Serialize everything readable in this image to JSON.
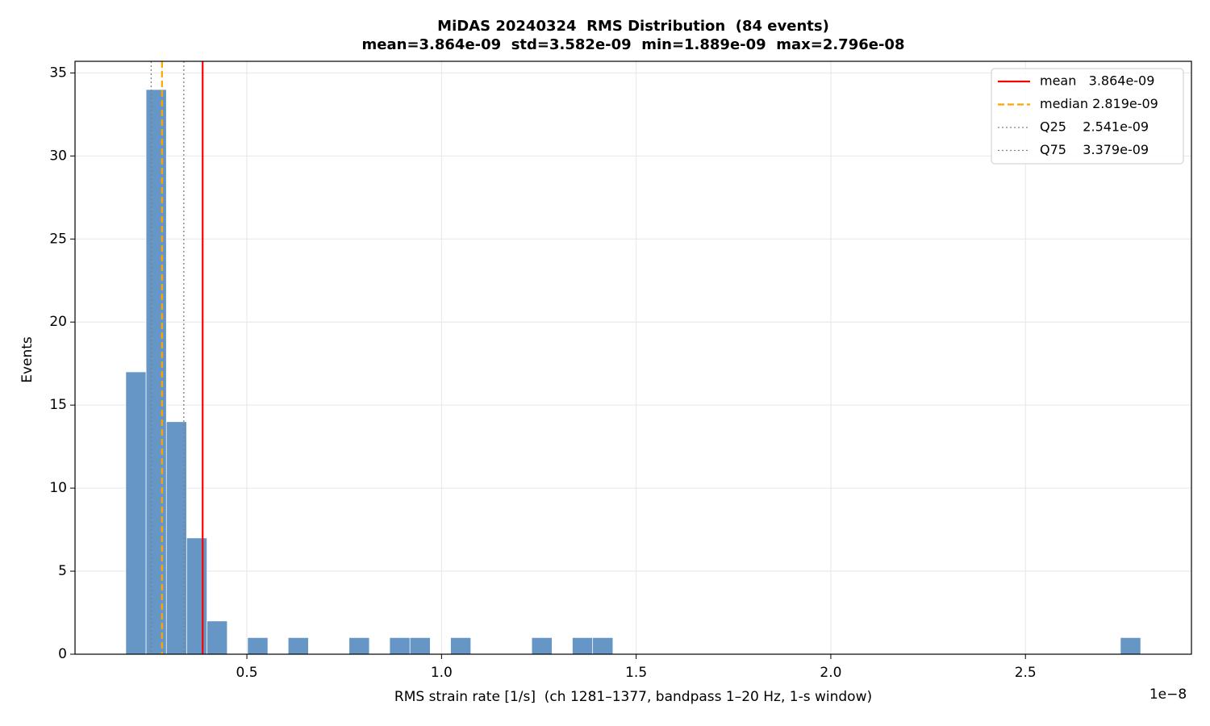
{
  "chart_data": {
    "type": "histogram",
    "title": "MiDAS 20240324  RMS Distribution  (84 events)",
    "subtitle": "mean=3.864e-09  std=3.582e-09  min=1.889e-09  max=2.796e-08",
    "x_label": "RMS strain rate [1/s]  (ch 1281–1377, bandpass 1–20 Hz, 1-s window)",
    "x_offset_label": "1e−8",
    "y_label": "Events",
    "bins": [
      0.1889,
      0.241,
      0.2932,
      0.3453,
      0.3975,
      0.4496,
      0.5018,
      0.5539,
      0.606,
      0.6582,
      0.7103,
      0.7625,
      0.8146,
      0.8667,
      0.9189,
      0.971,
      1.0232,
      1.0753,
      1.1275,
      1.1796,
      1.2317,
      1.2839,
      1.336,
      1.3882,
      1.4403,
      1.4925,
      1.5446,
      1.5967,
      1.6489,
      1.701,
      1.7532,
      1.8053,
      1.8574,
      1.9096,
      1.9617,
      2.0139,
      2.066,
      2.1182,
      2.1703,
      2.2224,
      2.2746,
      2.3267,
      2.3789,
      2.431,
      2.4832,
      2.5353,
      2.5874,
      2.6396,
      2.6917,
      2.7439,
      2.796
    ],
    "counts": [
      17,
      34,
      14,
      7,
      2,
      0,
      1,
      0,
      1,
      0,
      0,
      1,
      0,
      1,
      1,
      0,
      1,
      0,
      0,
      0,
      1,
      0,
      1,
      1,
      0,
      0,
      0,
      0,
      0,
      0,
      0,
      0,
      0,
      0,
      0,
      0,
      0,
      0,
      0,
      0,
      0,
      0,
      0,
      0,
      0,
      0,
      0,
      0,
      0,
      1
    ],
    "color": "#6596c5",
    "vlines": [
      {
        "label": "mean   3.864e-09",
        "value": 0.3864,
        "color": "#ff0000",
        "style": "solid"
      },
      {
        "label": "median 2.819e-09",
        "value": 0.2819,
        "color": "#ffa500",
        "style": "dashed"
      },
      {
        "label": "Q25    2.541e-09",
        "value": 0.2541,
        "color": "#808080",
        "style": "dotted"
      },
      {
        "label": "Q75    3.379e-09",
        "value": 0.3379,
        "color": "#808080",
        "style": "dotted"
      }
    ],
    "xlim": [
      0.0585,
      2.9264
    ],
    "ylim": [
      0,
      35.7
    ],
    "xticks": [
      0.5,
      {
        "value": 1,
        "label": "1.0"
      },
      1.5,
      {
        "value": 2,
        "label": "2.0"
      },
      2.5
    ],
    "yticks": [
      0,
      5,
      10,
      15,
      20,
      25,
      30,
      35
    ],
    "grid": true,
    "legend": "upper right"
  }
}
